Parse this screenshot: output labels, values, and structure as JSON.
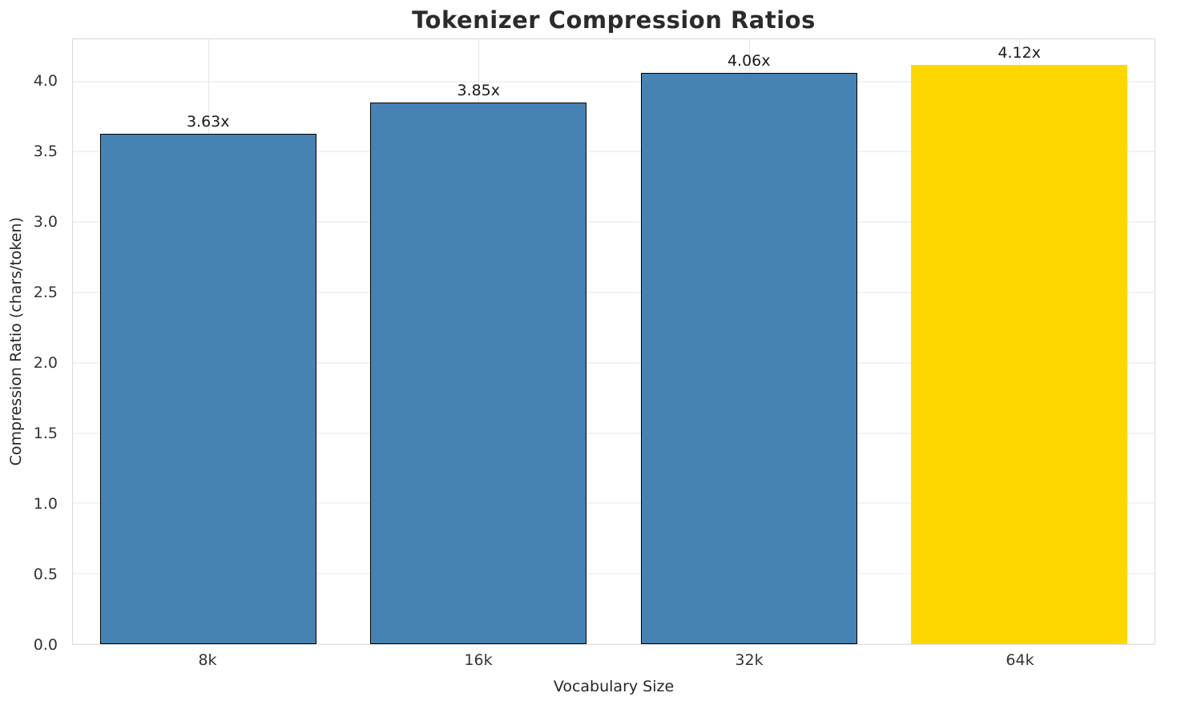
{
  "chart_data": {
    "type": "bar",
    "title": "Tokenizer Compression Ratios",
    "xlabel": "Vocabulary Size",
    "ylabel": "Compression Ratio (chars/token)",
    "categories": [
      "8k",
      "16k",
      "32k",
      "64k"
    ],
    "values": [
      3.63,
      3.85,
      4.06,
      4.12
    ],
    "bar_labels": [
      "3.63x",
      "3.85x",
      "4.06x",
      "4.12x"
    ],
    "bar_colors": [
      "#4682b4",
      "#4682b4",
      "#4682b4",
      "#ffd700"
    ],
    "bar_edge_colors": [
      "#000000",
      "#000000",
      "#000000",
      "#ffd700"
    ],
    "ylim": [
      0,
      4.3
    ],
    "yticks": [
      "0.0",
      "0.5",
      "1.0",
      "1.5",
      "2.0",
      "2.5",
      "3.0",
      "3.5",
      "4.0"
    ],
    "grid": true,
    "grid_color": "#e6e6e6",
    "legend": "none"
  }
}
